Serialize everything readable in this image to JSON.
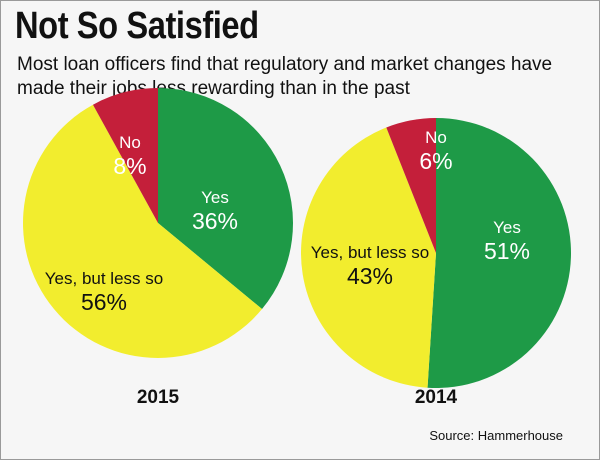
{
  "header": {
    "title": "Not So Satisfied",
    "subtitle": "Most loan officers find that regulatory and market changes have made their jobs less rewarding than in the past"
  },
  "footer": {
    "source": "Source: Hammerhouse"
  },
  "colors": {
    "yes": "#1e9a47",
    "yes_less": "#f2ed2e",
    "no": "#c41f3a",
    "label_light": "#ffffff",
    "label_dark": "#111111"
  },
  "chart_data": [
    {
      "type": "pie",
      "title": "2015",
      "slices": [
        {
          "label": "Yes",
          "value": 36,
          "value_text": "36%",
          "color": "#1e9a47"
        },
        {
          "label": "Yes, but less so",
          "value": 56,
          "value_text": "56%",
          "color": "#f2ed2e"
        },
        {
          "label": "No",
          "value": 8,
          "value_text": "8%",
          "color": "#c41f3a"
        }
      ]
    },
    {
      "type": "pie",
      "title": "2014",
      "slices": [
        {
          "label": "Yes",
          "value": 51,
          "value_text": "51%",
          "color": "#1e9a47"
        },
        {
          "label": "Yes, but less so",
          "value": 43,
          "value_text": "43%",
          "color": "#f2ed2e"
        },
        {
          "label": "No",
          "value": 6,
          "value_text": "6%",
          "color": "#c41f3a"
        }
      ]
    }
  ]
}
